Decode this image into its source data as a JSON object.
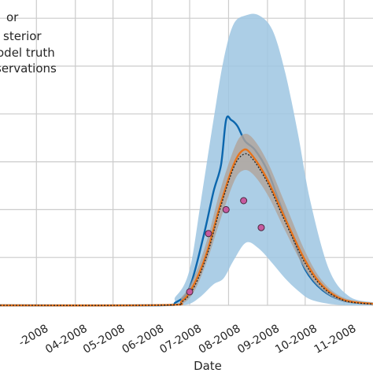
{
  "chart_data": {
    "type": "line",
    "title": "",
    "xlabel": "Date",
    "ylabel": "",
    "grid": true,
    "legend_placement": "top-left",
    "x_ticks": [
      "04-2008",
      "05-2008",
      "06-2008",
      "07-2008",
      "08-2008",
      "09-2008",
      "10-2008",
      "11-2008"
    ],
    "x_partial_left_tick": "-2008",
    "x_range": [
      "2008-02-01",
      "2008-11-24"
    ],
    "y_range": [
      0,
      1
    ],
    "legend": [
      {
        "label": "or",
        "color": "#2f6fb0",
        "kind": "band"
      },
      {
        "label": "sterior",
        "color": "#d95f02",
        "kind": "band"
      },
      {
        "label": "odel truth",
        "color": "#000000",
        "kind": "line"
      },
      {
        "label": "servations",
        "color": "#c85a9c",
        "kind": "marker"
      }
    ],
    "colors": {
      "prior_band": "#9ec5e2",
      "prior_line": "#0b66ad",
      "posterior_band": "#b2a49a",
      "posterior_line": "#e8731a",
      "truth": "#222222",
      "observation_fill": "#c65a9f",
      "observation_edge": "#4a2a3f"
    },
    "series": [
      {
        "name": "prior band",
        "dates": [
          "2008-02-01",
          "2008-06-05",
          "2008-06-20",
          "2008-07-01",
          "2008-07-10",
          "2008-07-20",
          "2008-07-28",
          "2008-08-05",
          "2008-08-15",
          "2008-08-25",
          "2008-09-05",
          "2008-09-15",
          "2008-09-25",
          "2008-10-05",
          "2008-10-20",
          "2008-11-05",
          "2008-11-24"
        ],
        "upper": [
          0,
          0.002,
          0.03,
          0.12,
          0.35,
          0.62,
          0.82,
          0.94,
          0.97,
          0.97,
          0.92,
          0.78,
          0.58,
          0.35,
          0.12,
          0.03,
          0.01
        ],
        "lower": [
          0,
          0,
          0,
          0.005,
          0.03,
          0.07,
          0.09,
          0.15,
          0.21,
          0.19,
          0.14,
          0.09,
          0.05,
          0.02,
          0.005,
          0,
          0
        ]
      },
      {
        "name": "prior mean",
        "dates": [
          "2008-02-01",
          "2008-06-05",
          "2008-06-20",
          "2008-07-01",
          "2008-07-12",
          "2008-07-20",
          "2008-07-26",
          "2008-07-30",
          "2008-08-03",
          "2008-08-08",
          "2008-08-14",
          "2008-08-22",
          "2008-09-01",
          "2008-09-10",
          "2008-09-20",
          "2008-10-01",
          "2008-10-15",
          "2008-11-01",
          "2008-11-24"
        ],
        "values": [
          0,
          0,
          0.01,
          0.06,
          0.23,
          0.38,
          0.47,
          0.62,
          0.62,
          0.6,
          0.55,
          0.52,
          0.45,
          0.35,
          0.24,
          0.12,
          0.05,
          0.015,
          0.005
        ]
      },
      {
        "name": "posterior band",
        "dates": [
          "2008-02-01",
          "2008-06-10",
          "2008-06-25",
          "2008-07-05",
          "2008-07-15",
          "2008-07-25",
          "2008-08-05",
          "2008-08-12",
          "2008-08-20",
          "2008-09-01",
          "2008-09-15",
          "2008-10-01",
          "2008-10-15",
          "2008-11-01",
          "2008-11-24"
        ],
        "upper": [
          0,
          0.002,
          0.03,
          0.1,
          0.22,
          0.38,
          0.52,
          0.57,
          0.56,
          0.48,
          0.34,
          0.18,
          0.08,
          0.025,
          0.008
        ],
        "lower": [
          0,
          0,
          0.005,
          0.05,
          0.15,
          0.28,
          0.41,
          0.45,
          0.44,
          0.37,
          0.25,
          0.12,
          0.05,
          0.012,
          0.003
        ]
      },
      {
        "name": "posterior mean",
        "dates": [
          "2008-02-01",
          "2008-06-10",
          "2008-06-25",
          "2008-07-05",
          "2008-07-15",
          "2008-07-25",
          "2008-08-05",
          "2008-08-13",
          "2008-08-20",
          "2008-09-01",
          "2008-09-15",
          "2008-10-01",
          "2008-10-15",
          "2008-11-01",
          "2008-11-24"
        ],
        "values": [
          0,
          0.001,
          0.015,
          0.075,
          0.18,
          0.33,
          0.47,
          0.52,
          0.5,
          0.42,
          0.29,
          0.15,
          0.065,
          0.018,
          0.005
        ]
      },
      {
        "name": "model truth",
        "dates": [
          "2008-02-01",
          "2008-06-10",
          "2008-06-25",
          "2008-07-05",
          "2008-07-15",
          "2008-07-25",
          "2008-08-05",
          "2008-08-13",
          "2008-08-20",
          "2008-09-01",
          "2008-09-15",
          "2008-10-01",
          "2008-10-15",
          "2008-11-01",
          "2008-11-24"
        ],
        "values": [
          0,
          0.001,
          0.012,
          0.065,
          0.17,
          0.32,
          0.46,
          0.505,
          0.49,
          0.41,
          0.28,
          0.14,
          0.06,
          0.016,
          0.004
        ]
      },
      {
        "name": "observations",
        "dates": [
          "2008-07-01",
          "2008-07-16",
          "2008-07-30",
          "2008-08-13",
          "2008-08-27"
        ],
        "values": [
          0.045,
          0.24,
          0.32,
          0.35,
          0.26
        ]
      }
    ]
  }
}
